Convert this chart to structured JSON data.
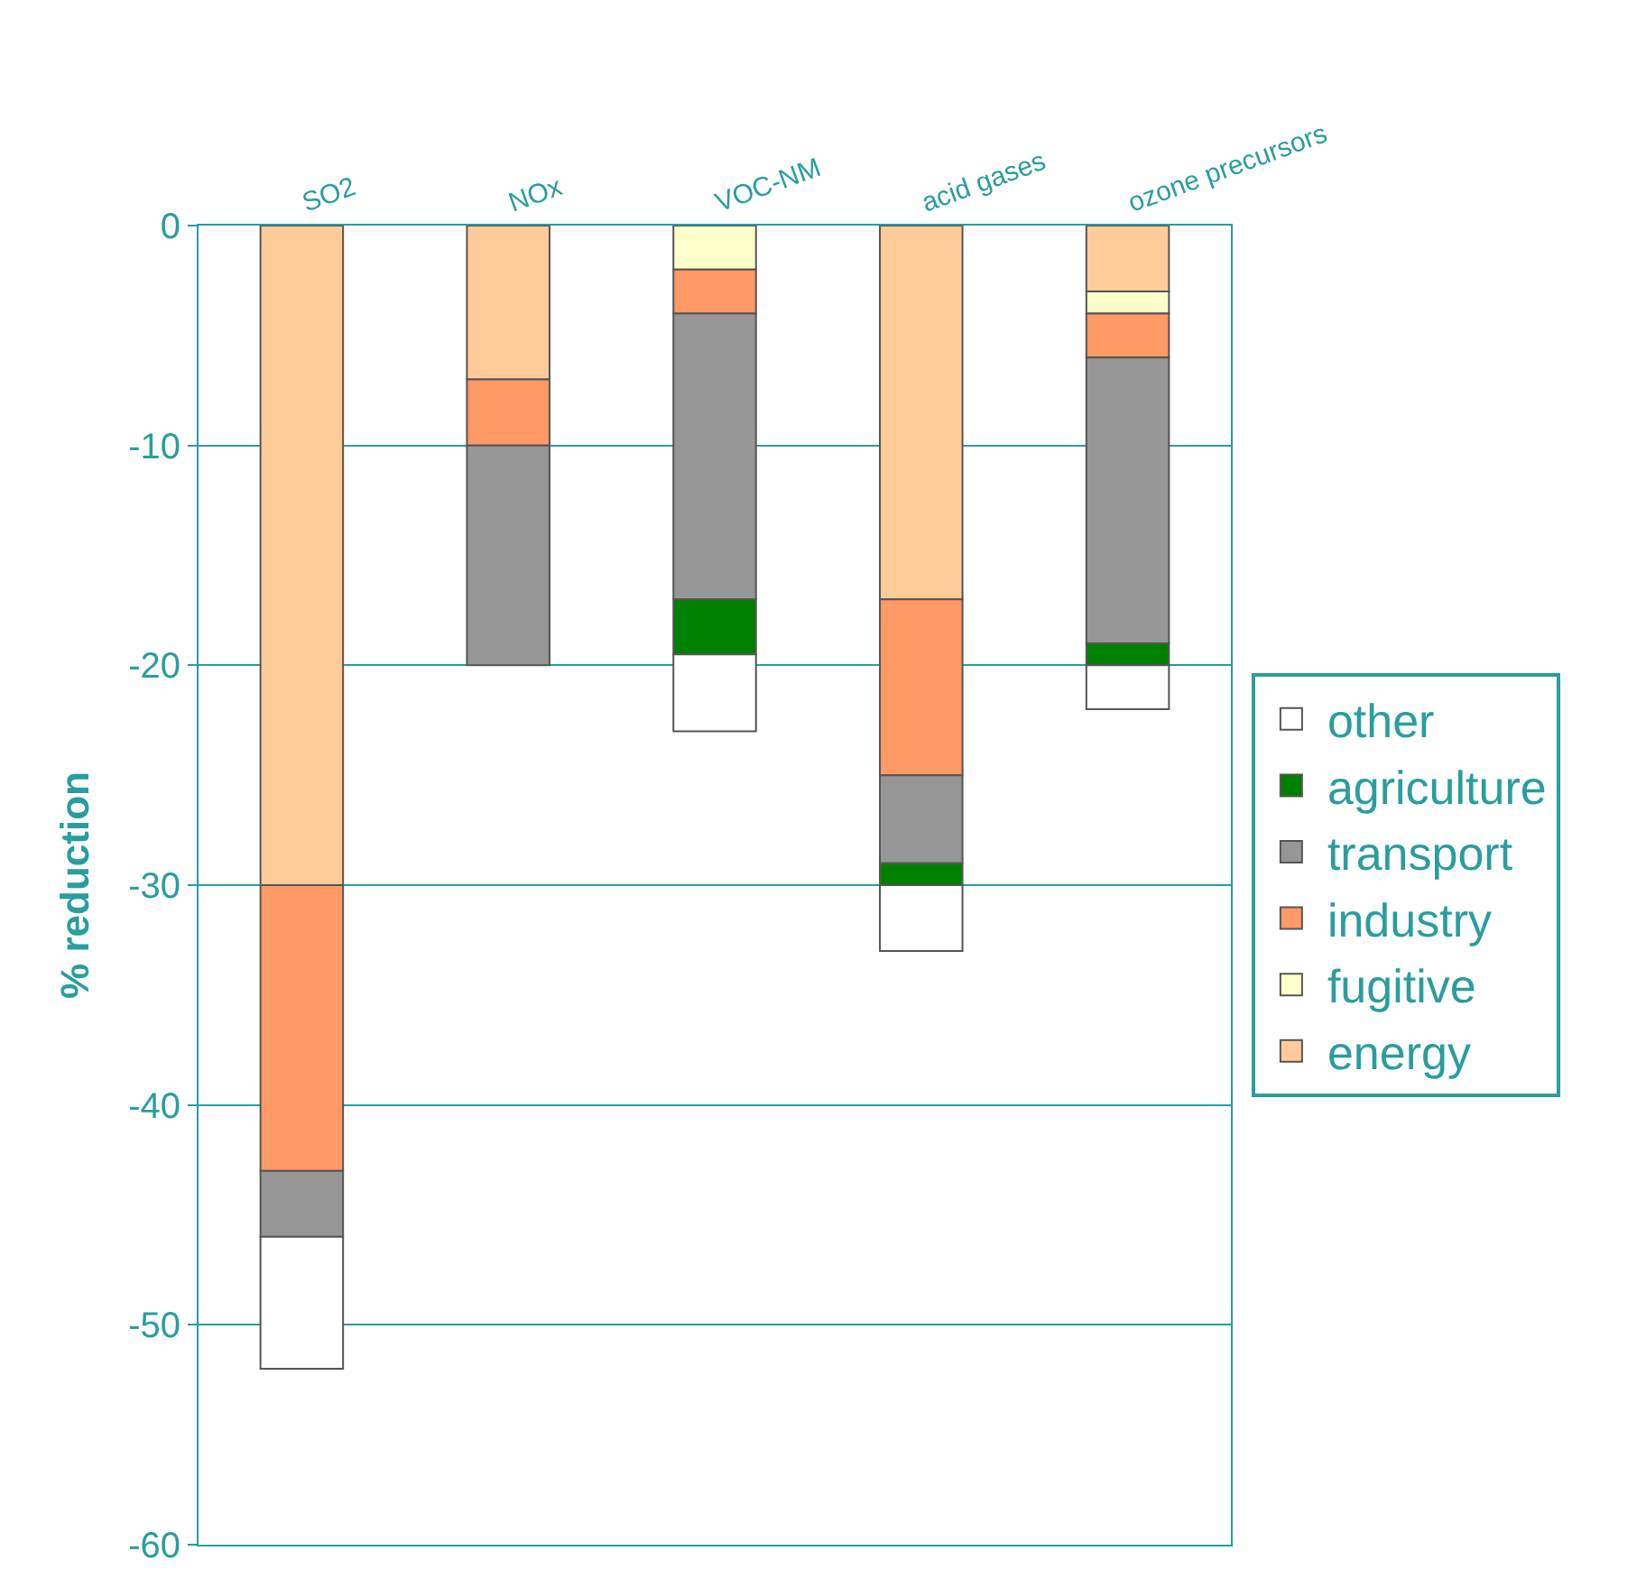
{
  "chart_data": {
    "type": "bar",
    "stacked": true,
    "ylabel": "% reduction",
    "categories": [
      "SO2",
      "NOx",
      "VOC-NM",
      "acid gases",
      "ozone precursors"
    ],
    "series": [
      {
        "name": "energy",
        "color": "#ffcc99",
        "values": [
          -30,
          -7,
          null,
          -17,
          -3
        ]
      },
      {
        "name": "fugitive",
        "color": "#ffffcc",
        "values": [
          null,
          null,
          -2,
          null,
          -1
        ]
      },
      {
        "name": "industry",
        "color": "#ff9966",
        "values": [
          -13,
          -3,
          -2,
          -8,
          -2
        ]
      },
      {
        "name": "transport",
        "color": "#969696",
        "values": [
          -3,
          -10,
          -13,
          -4,
          -13
        ]
      },
      {
        "name": "agriculture",
        "color": "#008000",
        "values": [
          null,
          null,
          -2.5,
          -1,
          -1
        ]
      },
      {
        "name": "other",
        "color": "#ffffff",
        "values": [
          -6,
          null,
          -3.5,
          -3,
          -2
        ]
      }
    ],
    "ylim": [
      -60,
      0
    ],
    "yticks": [
      -60,
      -50,
      -40,
      -30,
      -20,
      -10,
      0
    ],
    "grid": "y",
    "legend": "right"
  }
}
